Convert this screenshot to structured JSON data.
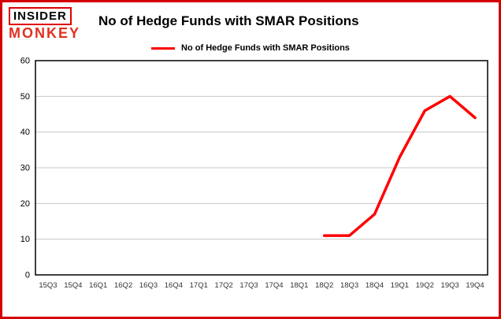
{
  "header": {
    "logo_line1": "INSIDER",
    "logo_line2": "MONKEY",
    "title": "No of Hedge Funds with SMAR Positions"
  },
  "legend": {
    "label": "No of Hedge Funds with SMAR Positions",
    "color": "#ff0000"
  },
  "chart_data": {
    "type": "line",
    "title": "No of Hedge Funds with SMAR Positions",
    "categories": [
      "15Q3",
      "15Q4",
      "16Q1",
      "16Q2",
      "16Q3",
      "16Q4",
      "17Q1",
      "17Q2",
      "17Q3",
      "17Q4",
      "18Q1",
      "18Q2",
      "18Q3",
      "18Q4",
      "19Q1",
      "19Q2",
      "19Q3",
      "19Q4"
    ],
    "series": [
      {
        "name": "No of Hedge Funds with SMAR Positions",
        "color": "#ff0000",
        "values": [
          null,
          null,
          null,
          null,
          null,
          null,
          null,
          null,
          null,
          null,
          null,
          11,
          11,
          17,
          33,
          46,
          50,
          44
        ]
      }
    ],
    "xlabel": "",
    "ylabel": "",
    "ylim": [
      0,
      60
    ],
    "yticks": [
      0,
      10,
      20,
      30,
      40,
      50,
      60
    ],
    "grid": true,
    "grid_color": "#c8c8c8",
    "plot_border_color": "#000000",
    "legend_position": "top"
  }
}
